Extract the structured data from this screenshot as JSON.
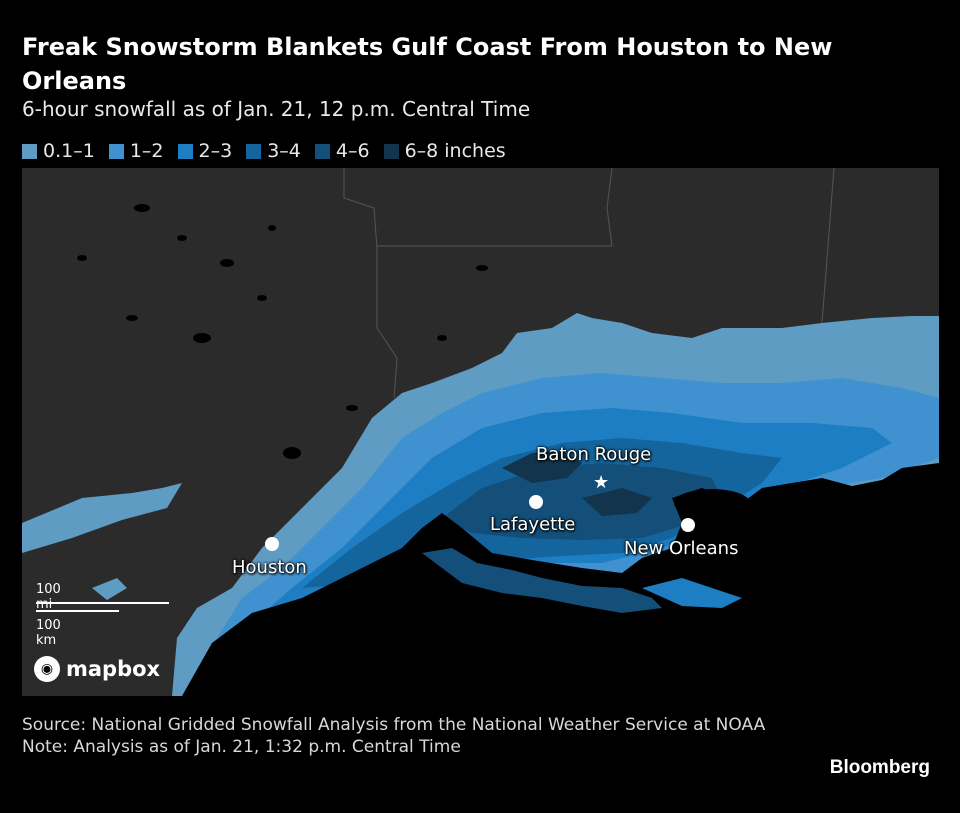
{
  "title": "Freak Snowstorm Blankets Gulf Coast From Houston to New Orleans",
  "subtitle": "6-hour snowfall as of Jan. 21, 12 p.m. Central Time",
  "legend": [
    {
      "label": "0.1–1",
      "color": "#5f9cc4"
    },
    {
      "label": "1–2",
      "color": "#3f92cf"
    },
    {
      "label": "2–3",
      "color": "#1d7ec4"
    },
    {
      "label": "3–4",
      "color": "#14659d"
    },
    {
      "label": "4–6",
      "color": "#134f79"
    },
    {
      "label": "6–8 inches",
      "color": "#12344d"
    }
  ],
  "map": {
    "cities": [
      {
        "name": "Houston",
        "marker": "dot"
      },
      {
        "name": "Lafayette",
        "marker": "dot"
      },
      {
        "name": "Baton Rouge",
        "marker": "star"
      },
      {
        "name": "New Orleans",
        "marker": "dot"
      }
    ],
    "scale": {
      "miles": "100 mi",
      "km": "100 km"
    },
    "attribution": "mapbox"
  },
  "footer": {
    "source": "Source: National Gridded Snowfall Analysis from the National Weather Service at NOAA",
    "note": "Note: Analysis as of Jan. 21, 1:32 p.m. Central Time"
  },
  "brand": "Bloomberg"
}
